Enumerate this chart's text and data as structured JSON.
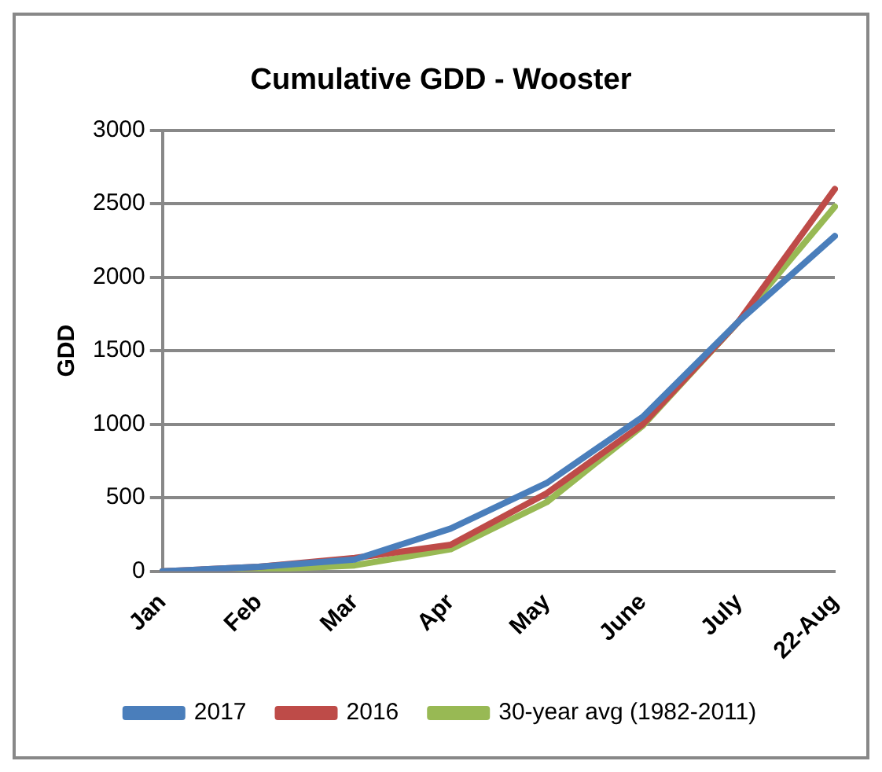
{
  "chart_data": {
    "type": "line",
    "title": "Cumulative GDD - Wooster",
    "ylabel": "GDD",
    "categories": [
      "Jan",
      "Feb",
      "Mar",
      "Apr",
      "May",
      "June",
      "July",
      "22-Aug"
    ],
    "series": [
      {
        "name": "2017",
        "color": "#4a7ebb",
        "values": [
          0,
          30,
          80,
          290,
          600,
          1050,
          1700,
          2280
        ]
      },
      {
        "name": "2016",
        "color": "#be4b48",
        "values": [
          0,
          30,
          90,
          180,
          530,
          1000,
          1700,
          2600
        ]
      },
      {
        "name": "30-year avg (1982-2011)",
        "color": "#98b954",
        "values": [
          0,
          10,
          40,
          150,
          470,
          990,
          1700,
          2480
        ]
      }
    ],
    "ylim": [
      0,
      3000
    ],
    "yticks": [
      0,
      500,
      1000,
      1500,
      2000,
      2500,
      3000
    ],
    "grid": "y",
    "legend": "bottom",
    "marker": "none",
    "line_style": "solid"
  }
}
